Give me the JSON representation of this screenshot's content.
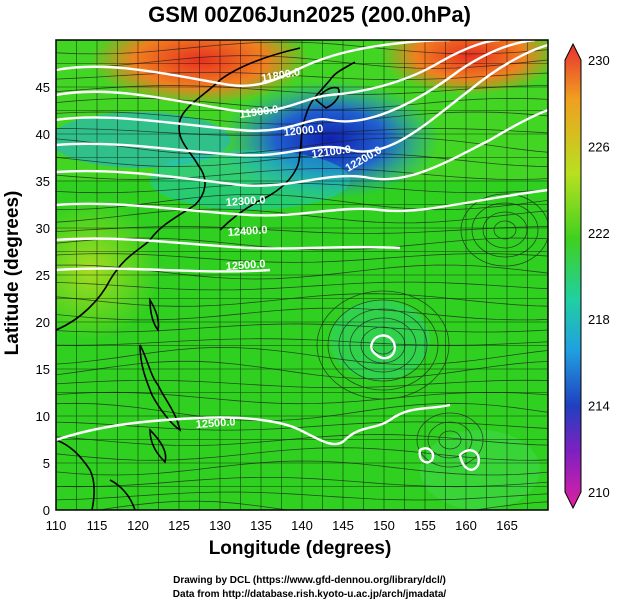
{
  "title": "GSM 00Z06Jun2025 (200.0hPa)",
  "axes": {
    "xlabel": "Longitude (degrees)",
    "ylabel": "Latitude  (degrees)",
    "x_ticks": [
      "110",
      "115",
      "120",
      "125",
      "130",
      "135",
      "140",
      "145",
      "150",
      "155",
      "160",
      "165"
    ],
    "y_ticks": [
      "0",
      "5",
      "10",
      "15",
      "20",
      "25",
      "30",
      "35",
      "40",
      "45"
    ],
    "xlim": [
      110,
      170
    ],
    "ylim": [
      0,
      50
    ]
  },
  "colorbar": {
    "labels": [
      "230",
      "226",
      "222",
      "218",
      "214",
      "210"
    ],
    "range": [
      210,
      230
    ]
  },
  "contour_labels": [
    "11800.0",
    "11900.0",
    "12000.0",
    "12100.0",
    "12200.0",
    "12300.0",
    "12400.0",
    "12500.0",
    "12500.0"
  ],
  "credits": {
    "line1": "Drawing by DCL (https://www.gfd-dennou.org/library/dcl/)",
    "line2": "Data from http://database.rish.kyoto-u.ac.jp/arch/jmadata/"
  },
  "colors": {
    "background": "#ffffff",
    "warm": "#e84020",
    "cold": "#2030c0",
    "mid": "#30d020",
    "contour": "#ffffff"
  }
}
